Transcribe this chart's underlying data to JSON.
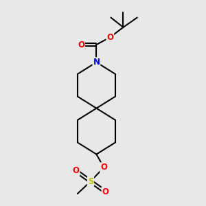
{
  "bg_color": "#e8e8e8",
  "bond_color": "#000000",
  "bond_width": 1.5,
  "atom_colors": {
    "N": "#0000ee",
    "O": "#ff0000",
    "S": "#bbbb00",
    "C": "#000000"
  },
  "font_size_atom": 8.5
}
